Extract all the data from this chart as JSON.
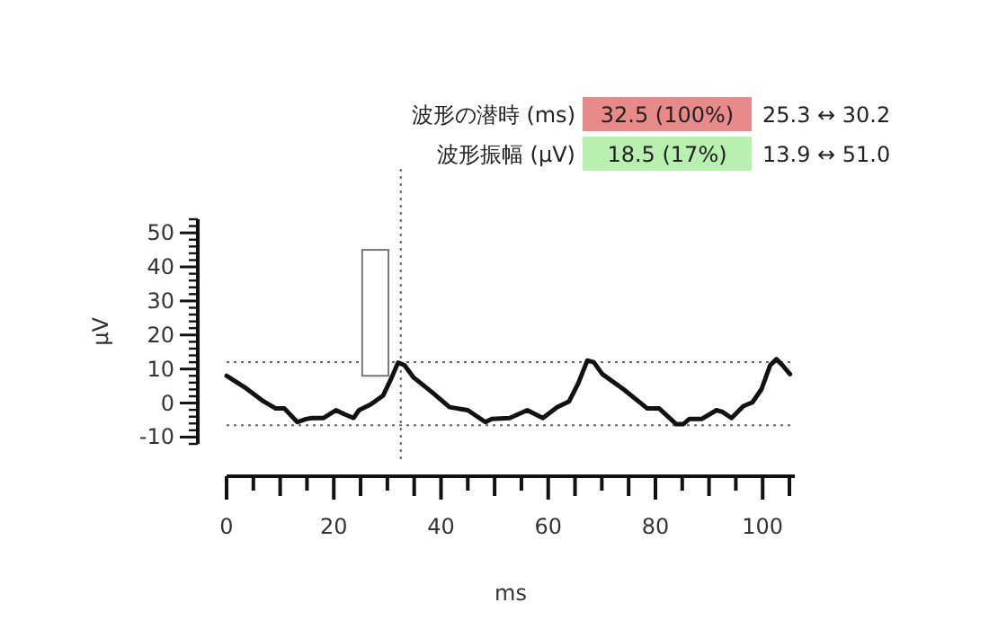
{
  "chart_data": {
    "type": "line",
    "xlabel": "ms",
    "ylabel": "μV",
    "xlim": [
      0,
      106
    ],
    "xticks": [
      0,
      20,
      40,
      60,
      80,
      100
    ],
    "ylim": [
      -12,
      54
    ],
    "yticks": [
      -10,
      0,
      10,
      20,
      30,
      40,
      50
    ],
    "grid": false,
    "marker": "none",
    "series": [
      {
        "color": "#111111",
        "line_style": "solid",
        "x": [
          0,
          3.6,
          6.9,
          9.2,
          10.8,
          13.2,
          14.8,
          15.9,
          18.1,
          20.4,
          22,
          23.7,
          24.7,
          26.9,
          29.2,
          30.8,
          32,
          33.2,
          34.9,
          38.3,
          41.6,
          45,
          48.3,
          49.4,
          52.8,
          56.1,
          59,
          61.7,
          63.9,
          65.6,
          67.3,
          68.5,
          70.1,
          74,
          78.5,
          80.7,
          83.9,
          85.2,
          86.3,
          88.6,
          91.4,
          92.5,
          94.2,
          96.4,
          98.1,
          99.8,
          101.4,
          102.6,
          103.7,
          105.1
        ],
        "values": [
          8,
          4.4,
          0.5,
          -1.6,
          -1.6,
          -5.6,
          -4.7,
          -4.4,
          -4.4,
          -2.1,
          -3.3,
          -4.4,
          -2.1,
          -0.4,
          2.2,
          7.5,
          11.9,
          11.1,
          7.5,
          3.2,
          -1.2,
          -2.1,
          -5.6,
          -4.7,
          -4.4,
          -2.1,
          -4.4,
          -1.2,
          0.5,
          5.8,
          12.5,
          12,
          8.5,
          4.1,
          -1.6,
          -1.6,
          -6.2,
          -6.2,
          -4.7,
          -4.7,
          -2.1,
          -2.6,
          -4.4,
          -0.9,
          0.2,
          4.1,
          11.1,
          12.9,
          11.1,
          8.5
        ]
      },
      {
        "type": "bar",
        "color": "#ffffff",
        "x": [
          27.75
        ],
        "base": [
          8
        ],
        "values": [
          37
        ]
      }
    ],
    "ref_lines": [
      {
        "axis": "y",
        "value": 12,
        "line_style": "dotted",
        "color": "#666666"
      },
      {
        "axis": "y",
        "value": -6.5,
        "line_style": "dotted",
        "color": "#666666"
      },
      {
        "axis": "x",
        "value": 32.5,
        "line_style": "dotted",
        "color": "#666666"
      }
    ],
    "annotations": [
      "波形の潜時 (ms)",
      "32.5 (100%)",
      "25.3 ↔ 30.2",
      "波形振幅 (μV)",
      "18.5 (17%)",
      "13.9 ↔ 51.0"
    ]
  }
}
